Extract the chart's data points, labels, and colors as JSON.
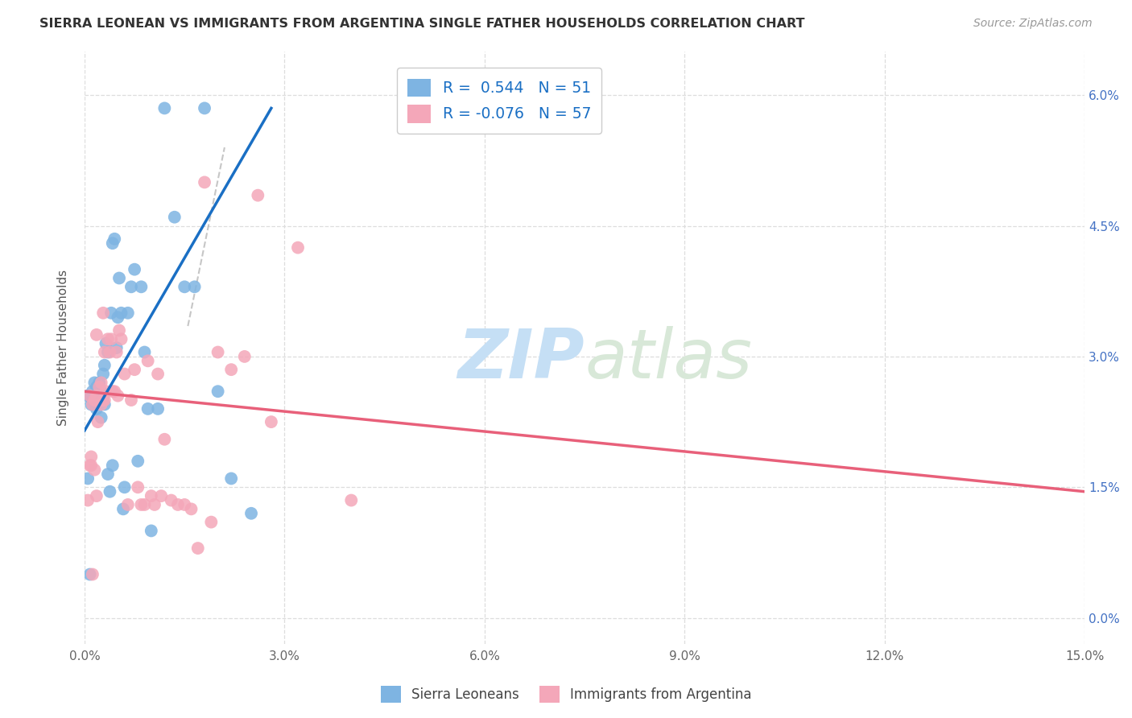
{
  "title": "SIERRA LEONEAN VS IMMIGRANTS FROM ARGENTINA SINGLE FATHER HOUSEHOLDS CORRELATION CHART",
  "source": "Source: ZipAtlas.com",
  "xlabel_ticks": [
    "0.0%",
    "3.0%",
    "6.0%",
    "9.0%",
    "12.0%",
    "15.0%"
  ],
  "xlabel_vals": [
    0.0,
    3.0,
    6.0,
    9.0,
    12.0,
    15.0
  ],
  "ylabel_ticks": [
    "0.0%",
    "1.5%",
    "3.0%",
    "4.5%",
    "6.0%"
  ],
  "ylabel_vals": [
    0.0,
    1.5,
    3.0,
    4.5,
    6.0
  ],
  "xmin": 0.0,
  "xmax": 15.0,
  "ymin": -0.3,
  "ymax": 6.5,
  "blue_R": 0.544,
  "blue_N": 51,
  "pink_R": -0.076,
  "pink_N": 57,
  "blue_color": "#7eb4e2",
  "pink_color": "#f4a7b9",
  "blue_line_color": "#1a6fc4",
  "pink_line_color": "#e8607a",
  "dashed_line_color": "#b8b8b8",
  "grid_color": "#dddddd",
  "background_color": "#ffffff",
  "title_color": "#333333",
  "watermark_zip_color": "#c5dff5",
  "watermark_atlas_color": "#d8e8d8",
  "blue_scatter_x": [
    0.08,
    0.1,
    0.12,
    0.12,
    0.15,
    0.15,
    0.18,
    0.18,
    0.2,
    0.22,
    0.22,
    0.25,
    0.25,
    0.28,
    0.28,
    0.3,
    0.3,
    0.32,
    0.35,
    0.35,
    0.38,
    0.4,
    0.42,
    0.42,
    0.45,
    0.48,
    0.5,
    0.52,
    0.55,
    0.58,
    0.6,
    0.65,
    0.7,
    0.75,
    0.8,
    0.85,
    0.9,
    0.95,
    1.0,
    1.1,
    1.2,
    1.35,
    1.5,
    1.65,
    1.8,
    2.0,
    2.2,
    2.5,
    0.05,
    0.05,
    0.08
  ],
  "blue_scatter_y": [
    2.55,
    2.45,
    2.6,
    2.5,
    2.55,
    2.7,
    2.4,
    2.65,
    2.5,
    2.45,
    2.7,
    2.3,
    2.6,
    2.55,
    2.8,
    2.45,
    2.9,
    3.15,
    1.65,
    3.05,
    1.45,
    3.5,
    1.75,
    4.3,
    4.35,
    3.1,
    3.45,
    3.9,
    3.5,
    1.25,
    1.5,
    3.5,
    3.8,
    4.0,
    1.8,
    3.8,
    3.05,
    2.4,
    1.0,
    2.4,
    5.85,
    4.6,
    3.8,
    3.8,
    5.85,
    2.6,
    1.6,
    1.2,
    2.55,
    1.6,
    0.5
  ],
  "pink_scatter_x": [
    0.08,
    0.1,
    0.12,
    0.15,
    0.18,
    0.18,
    0.2,
    0.22,
    0.25,
    0.25,
    0.28,
    0.28,
    0.3,
    0.3,
    0.32,
    0.35,
    0.38,
    0.4,
    0.42,
    0.45,
    0.48,
    0.5,
    0.52,
    0.55,
    0.6,
    0.65,
    0.7,
    0.75,
    0.8,
    0.85,
    0.9,
    0.95,
    1.0,
    1.05,
    1.1,
    1.15,
    1.2,
    1.3,
    1.4,
    1.5,
    1.6,
    1.7,
    1.8,
    1.9,
    2.0,
    2.2,
    2.4,
    2.6,
    2.8,
    3.2,
    4.0,
    0.05,
    0.08,
    0.1,
    0.12,
    0.15,
    0.18
  ],
  "pink_scatter_y": [
    2.55,
    1.85,
    2.45,
    2.5,
    2.55,
    3.25,
    2.25,
    2.65,
    2.45,
    2.7,
    2.5,
    3.5,
    2.5,
    3.05,
    2.6,
    3.2,
    3.05,
    3.2,
    2.6,
    2.6,
    3.05,
    2.55,
    3.3,
    3.2,
    2.8,
    1.3,
    2.5,
    2.85,
    1.5,
    1.3,
    1.3,
    2.95,
    1.4,
    1.3,
    2.8,
    1.4,
    2.05,
    1.35,
    1.3,
    1.3,
    1.25,
    0.8,
    5.0,
    1.1,
    3.05,
    2.85,
    3.0,
    4.85,
    2.25,
    4.25,
    1.35,
    1.35,
    1.75,
    1.75,
    0.5,
    1.7,
    1.4
  ],
  "blue_line_x0": 0.0,
  "blue_line_x1": 2.8,
  "blue_line_y0": 2.15,
  "blue_line_y1": 5.85,
  "pink_line_x0": 0.0,
  "pink_line_x1": 15.0,
  "pink_line_y0": 2.6,
  "pink_line_y1": 1.45,
  "dashed_line_x0": 1.55,
  "dashed_line_y0": 3.35,
  "dashed_line_x1": 2.1,
  "dashed_line_y1": 5.4
}
